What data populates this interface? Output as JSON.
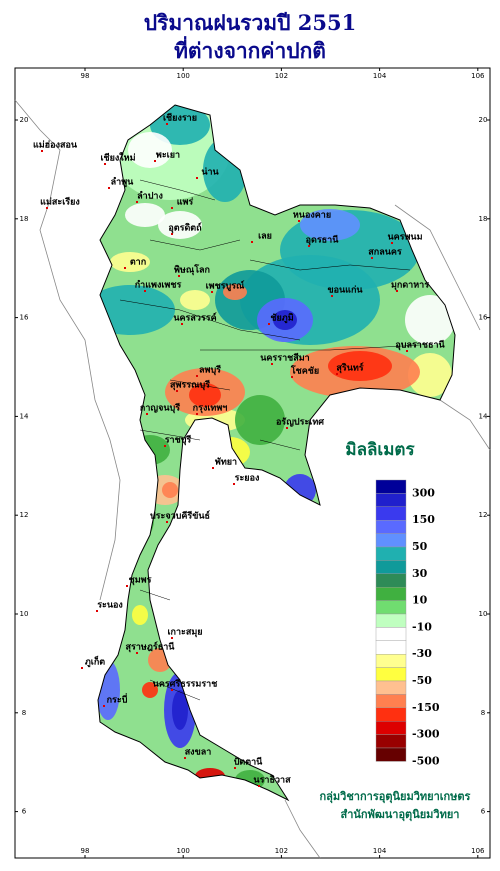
{
  "title": [
    "ปริมาณฝนรวมปี  2551",
    "ที่ต่างจากค่าปกติ"
  ],
  "map": {
    "xticks": [
      98,
      100,
      102,
      104,
      106
    ],
    "yticks": [
      20,
      18,
      16,
      14,
      12,
      10,
      8,
      6
    ],
    "places": [
      "เชียงราย",
      "แม่ฮ่องสอน",
      "เชียงใหม่",
      "พะเยา",
      "น่าน",
      "ลำพูน",
      "ลำปาง",
      "แพร่",
      "แม่สะเรียง",
      "อุตรดิตถ์",
      "ตาก",
      "พิษณุโลก",
      "กำแพงเพชร",
      "เพชรบูรณ์",
      "นครสวรรค์",
      "เลย",
      "หนองคาย",
      "อุดรธานี",
      "นครพนม",
      "สกลนคร",
      "มุกดาหาร",
      "ขอนแก่น",
      "ชัยภูมิ",
      "อุบลราชธานี",
      "นครราชสีมา",
      "โชคชัย",
      "สุรินทร์",
      "ลพบุรี",
      "สุพรรณบุรี",
      "กาญจนบุรี",
      "กรุงเทพฯ",
      "อรัญประเทศ",
      "ราชบุรี",
      "พัทยา",
      "ระยอง",
      "ประจวบคีรีขันธ์",
      "ชุมพร",
      "ระนอง",
      "เกาะสมุย",
      "สุราษฎร์ธานี",
      "ภูเก็ต",
      "นครศรีธรรมราช",
      "กระบี่",
      "สงขลา",
      "ปัตตานี",
      "นราธิวาส"
    ]
  },
  "legend": {
    "title": "มิลลิเมตร",
    "labels": [
      300,
      150,
      50,
      30,
      10,
      -10,
      -30,
      -50,
      -150,
      -300,
      -500
    ],
    "colors": [
      "#000099",
      "#2020cc",
      "#3a3aee",
      "#5a6aff",
      "#6090ff",
      "#20b0b0",
      "#109a9a",
      "#2e8b57",
      "#40b040",
      "#70dd70",
      "#c0ffc0",
      "#ffffff",
      "#ffffff",
      "#ffff90",
      "#ffff40",
      "#ffc090",
      "#ff8050",
      "#ff3010",
      "#dd0000",
      "#990000",
      "#660000"
    ]
  },
  "credit": [
    "กลุ่มวิชาการอุตุนิยมวิทยาเกษตร",
    "สำนักพัฒนาอุตุนิยมวิทยา"
  ]
}
